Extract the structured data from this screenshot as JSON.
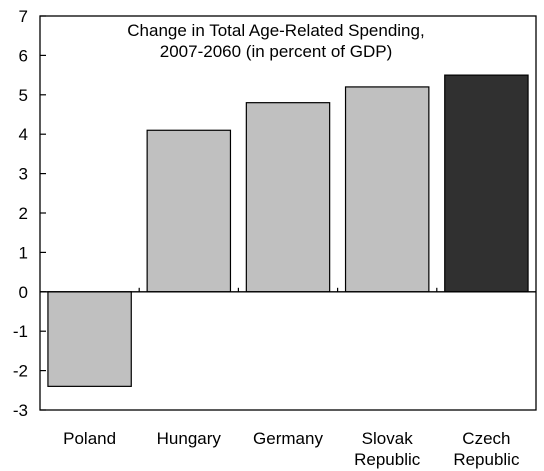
{
  "chart_data": {
    "type": "bar",
    "title_lines": [
      "Change in Total Age-Related Spending,",
      "2007-2060 (in percent of GDP)"
    ],
    "categories": [
      [
        "Poland"
      ],
      [
        "Hungary"
      ],
      [
        "Germany"
      ],
      [
        "Slovak",
        "Republic"
      ],
      [
        "Czech",
        "Republic"
      ]
    ],
    "values": [
      -2.4,
      4.1,
      4.8,
      5.2,
      5.5
    ],
    "ylim": [
      -3,
      7
    ],
    "yticks": [
      "-3",
      "-2",
      "-1",
      "0",
      "1",
      "2",
      "3",
      "4",
      "5",
      "6",
      "7"
    ],
    "grid": false,
    "colors": {
      "default_bar": "#c0c0c0",
      "highlight_bar": "#303030",
      "outline": "#000000"
    },
    "highlight_index": 4
  }
}
